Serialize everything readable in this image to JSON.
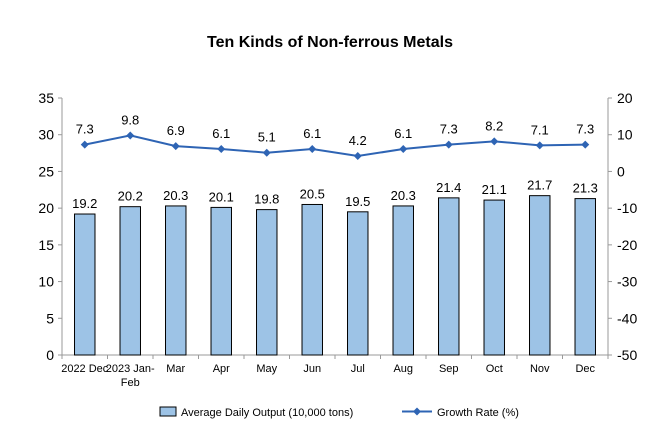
{
  "chart_data": {
    "type": "bar",
    "title": "Ten Kinds of Non-ferrous Metals",
    "categories": [
      "2022 Dec",
      "2023 Jan-Feb",
      "Mar",
      "Apr",
      "May",
      "Jun",
      "Jul",
      "Aug",
      "Sep",
      "Oct",
      "Nov",
      "Dec"
    ],
    "category_lines": [
      [
        "2022 Dec"
      ],
      [
        "2023 Jan-",
        "Feb"
      ],
      [
        "Mar"
      ],
      [
        "Apr"
      ],
      [
        "May"
      ],
      [
        "Jun"
      ],
      [
        "Jul"
      ],
      [
        "Aug"
      ],
      [
        "Sep"
      ],
      [
        "Oct"
      ],
      [
        "Nov"
      ],
      [
        "Dec"
      ]
    ],
    "series": [
      {
        "name": "Average Daily Output (10,000 tons)",
        "type": "bar",
        "axis": "left",
        "color": "#9DC3E6",
        "values": [
          19.2,
          20.2,
          20.3,
          20.1,
          19.8,
          20.5,
          19.5,
          20.3,
          21.4,
          21.1,
          21.7,
          21.3
        ],
        "labels": [
          "19.2",
          "20.2",
          "20.3",
          "20.1",
          "19.8",
          "20.5",
          "19.5",
          "20.3",
          "21.4",
          "21.1",
          "21.7",
          "21.3"
        ]
      },
      {
        "name": "Growth Rate (%)",
        "type": "line",
        "axis": "right",
        "color": "#2E64B4",
        "values": [
          7.3,
          9.8,
          6.9,
          6.1,
          5.1,
          6.1,
          4.2,
          6.1,
          7.3,
          8.2,
          7.1,
          7.3
        ],
        "labels": [
          "7.3",
          "9.8",
          "6.9",
          "6.1",
          "5.1",
          "6.1",
          "4.2",
          "6.1",
          "7.3",
          "8.2",
          "7.1",
          "7.3"
        ]
      }
    ],
    "y_left": {
      "min": 0,
      "max": 35,
      "ticks": [
        "0",
        "5",
        "10",
        "15",
        "20",
        "25",
        "30",
        "35"
      ]
    },
    "y_right": {
      "min": -50,
      "max": 20,
      "ticks": [
        "-50",
        "-40",
        "-30",
        "-20",
        "-10",
        "0",
        "10",
        "20"
      ]
    },
    "grid": false,
    "legend_position": "bottom"
  }
}
